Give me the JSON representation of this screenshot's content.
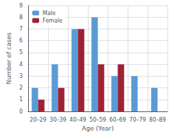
{
  "chart_data": {
    "type": "bar",
    "categories": [
      "20–29",
      "30–39",
      "40–49",
      "50–59",
      "60–69",
      "70–79",
      "80–89"
    ],
    "series": [
      {
        "name": "Male",
        "color": "#5b9bd5",
        "values": [
          2,
          4,
          7,
          8,
          3,
          3,
          2
        ]
      },
      {
        "name": "Female",
        "color": "#9b2335",
        "values": [
          1,
          2,
          7,
          4,
          4,
          0,
          0
        ]
      }
    ],
    "xlabel": "Age (Year)",
    "ylabel": "Number of cases",
    "ylim": [
      0,
      9
    ],
    "yticks": [
      0,
      1,
      2,
      3,
      4,
      5,
      6,
      7,
      8,
      9
    ],
    "grid": true,
    "legend": "upper left"
  }
}
